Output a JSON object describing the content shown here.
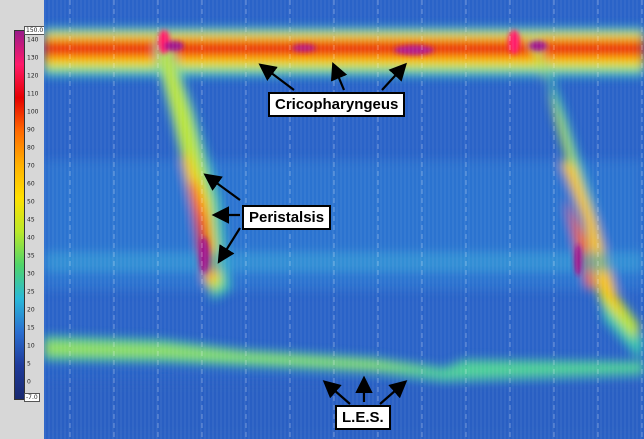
{
  "chart_data": {
    "type": "heatmap",
    "colorbar": {
      "max_label": "150.0",
      "min_label": "-7.0",
      "ticks": [
        "140",
        "130",
        "120",
        "110",
        "100",
        "90",
        "80",
        "70",
        "60",
        "50",
        "45",
        "40",
        "35",
        "30",
        "25",
        "20",
        "15",
        "10",
        "5",
        "0"
      ],
      "colors": [
        "#9a1a8a",
        "#ff1a6a",
        "#e40000",
        "#ff6a00",
        "#ffb000",
        "#ffe000",
        "#b9e82a",
        "#4fd46a",
        "#2ab8d8",
        "#2a6ed0",
        "#1e3a9a",
        "#1a2a70"
      ],
      "range": [
        -7,
        150
      ]
    },
    "annotations": [
      "Cricopharyngeus",
      "Peristalsis",
      "L.E.S."
    ],
    "swallows": 2
  }
}
